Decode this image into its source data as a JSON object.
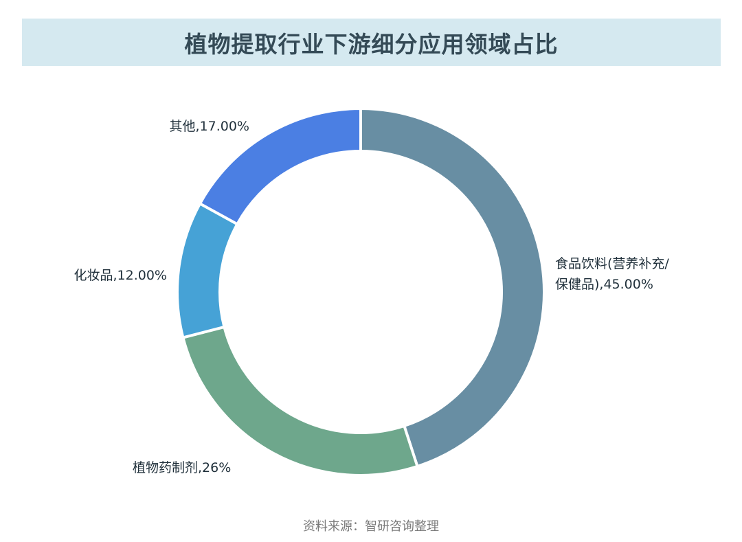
{
  "title": "植物提取行业下游细分应用领域占比",
  "source": "资料来源：智研咨询整理",
  "chart_data": {
    "type": "pie",
    "variant": "donut",
    "title": "植物提取行业下游细分应用领域占比",
    "grid": false,
    "legend": "none",
    "slices": [
      {
        "name": "食品饮料(营养补充/保健品)",
        "value": 45.0,
        "label_lines": [
          "食品饮料(营养补充/",
          "保健品),45.00%"
        ],
        "color": "#688ea3"
      },
      {
        "name": "植物药制剂",
        "value": 26.0,
        "label_lines": [
          "植物药制剂,26%"
        ],
        "color": "#6ea78c"
      },
      {
        "name": "化妆品",
        "value": 12.0,
        "label_lines": [
          "化妆品,12.00%"
        ],
        "color": "#46a2d6"
      },
      {
        "name": "其他",
        "value": 17.0,
        "label_lines": [
          "其他,17.00%"
        ],
        "color": "#4b7fe3"
      }
    ]
  }
}
